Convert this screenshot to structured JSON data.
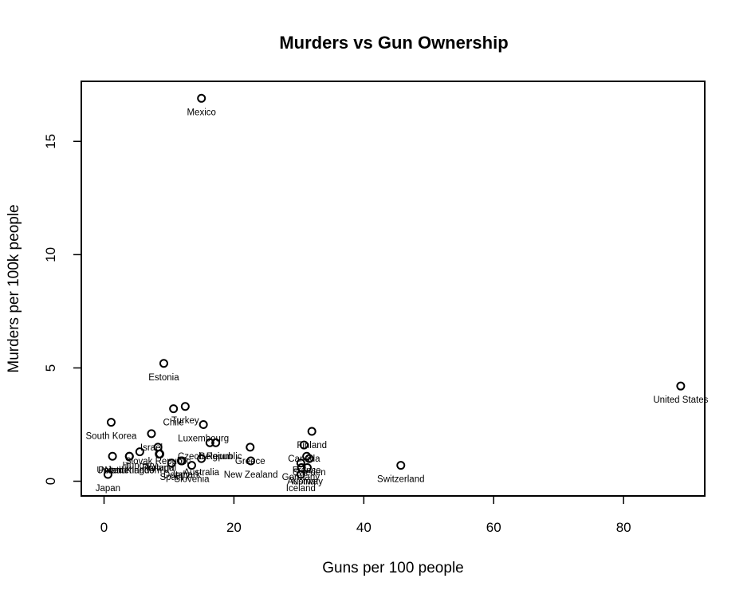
{
  "chart_data": {
    "type": "scatter",
    "title": "Murders vs Gun Ownership",
    "xlabel": "Guns per 100 people",
    "ylabel": "Murders per 100k people",
    "xlim": [
      -3.5,
      92.5
    ],
    "ylim": [
      -0.65,
      17.65
    ],
    "xticks": [
      0,
      20,
      40,
      60,
      80
    ],
    "yticks": [
      0,
      5,
      10,
      15
    ],
    "grid": false,
    "points": [
      {
        "label": "Mexico",
        "x": 15.0,
        "y": 16.9
      },
      {
        "label": "United States",
        "x": 88.8,
        "y": 4.2
      },
      {
        "label": "Estonia",
        "x": 9.2,
        "y": 5.2
      },
      {
        "label": "Chile",
        "x": 10.7,
        "y": 3.2
      },
      {
        "label": "Turkey",
        "x": 12.5,
        "y": 3.3
      },
      {
        "label": "South Korea",
        "x": 1.1,
        "y": 2.6
      },
      {
        "label": "Luxembourg",
        "x": 15.3,
        "y": 2.5
      },
      {
        "label": "Israel",
        "x": 7.3,
        "y": 2.1
      },
      {
        "label": "Finland",
        "x": 32.0,
        "y": 2.2
      },
      {
        "label": "Belgium",
        "x": 17.2,
        "y": 1.7
      },
      {
        "label": "Portugal",
        "x": 8.5,
        "y": 1.2
      },
      {
        "label": "Slovak Republic",
        "x": 8.3,
        "y": 1.5
      },
      {
        "label": "Czech Republic",
        "x": 16.3,
        "y": 1.7
      },
      {
        "label": "Greece",
        "x": 22.5,
        "y": 1.5
      },
      {
        "label": "Canada",
        "x": 30.8,
        "y": 1.6
      },
      {
        "label": "Hungary",
        "x": 5.5,
        "y": 1.3
      },
      {
        "label": "Ireland",
        "x": 8.6,
        "y": 1.2
      },
      {
        "label": "Poland",
        "x": 1.3,
        "y": 1.1
      },
      {
        "label": "United Kingdom",
        "x": 3.9,
        "y": 1.1
      },
      {
        "label": "Netherlands",
        "x": 3.9,
        "y": 1.1
      },
      {
        "label": "Italy",
        "x": 11.9,
        "y": 0.9
      },
      {
        "label": "Denmark",
        "x": 12.0,
        "y": 0.9
      },
      {
        "label": "France",
        "x": 31.2,
        "y": 1.1
      },
      {
        "label": "Sweden",
        "x": 31.6,
        "y": 1.0
      },
      {
        "label": "Australia",
        "x": 15.0,
        "y": 1.0
      },
      {
        "label": "New Zealand",
        "x": 22.6,
        "y": 0.9
      },
      {
        "label": "Spain",
        "x": 10.4,
        "y": 0.8
      },
      {
        "label": "Slovenia",
        "x": 13.5,
        "y": 0.7
      },
      {
        "label": "Switzerland",
        "x": 45.7,
        "y": 0.7
      },
      {
        "label": "Germany",
        "x": 30.3,
        "y": 0.8
      },
      {
        "label": "Austria",
        "x": 30.4,
        "y": 0.6
      },
      {
        "label": "Norway",
        "x": 31.3,
        "y": 0.6
      },
      {
        "label": "Iceland",
        "x": 30.3,
        "y": 0.3
      },
      {
        "label": "Japan",
        "x": 0.6,
        "y": 0.3
      }
    ]
  }
}
